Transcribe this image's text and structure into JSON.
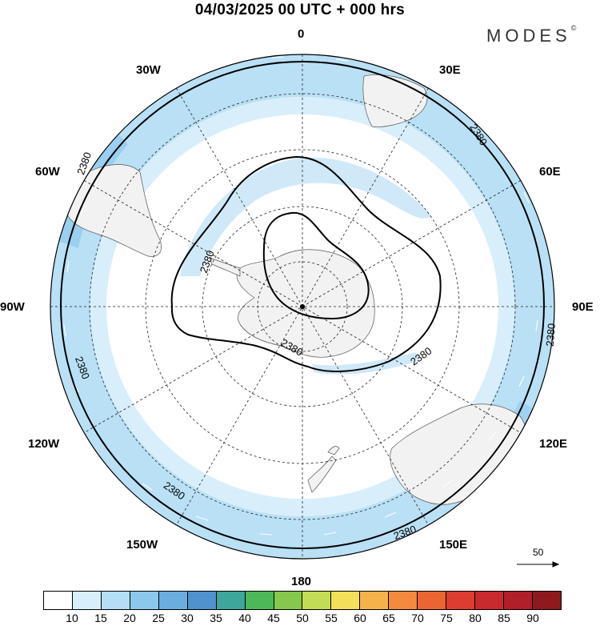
{
  "title": "04/03/2025  00 UTC  + 000 hrs",
  "brand": "MODES",
  "brand_mark": "©",
  "map": {
    "projection": "polar-stereographic-south",
    "lon_labels": [
      {
        "id": "0",
        "text": "0"
      },
      {
        "id": "30E",
        "text": "30E"
      },
      {
        "id": "60E",
        "text": "60E"
      },
      {
        "id": "90E",
        "text": "90E"
      },
      {
        "id": "120E",
        "text": "120E"
      },
      {
        "id": "150E",
        "text": "150E"
      },
      {
        "id": "180",
        "text": "180"
      },
      {
        "id": "150W",
        "text": "150W"
      },
      {
        "id": "120W",
        "text": "120W"
      },
      {
        "id": "90W",
        "text": "90W"
      },
      {
        "id": "60W",
        "text": "60W"
      },
      {
        "id": "30W",
        "text": "30W"
      }
    ],
    "contour_label": "2380",
    "vector_reference": "50"
  },
  "colorbar": {
    "colors": [
      "#ffffff",
      "#d8effb",
      "#b4def5",
      "#8cc8ec",
      "#6aaee0",
      "#4f92cc",
      "#3ea69a",
      "#4db857",
      "#86c84e",
      "#c3dc55",
      "#f4df5a",
      "#f6b24a",
      "#f38a3d",
      "#eb6532",
      "#dc3d30",
      "#c82a2d",
      "#b11f2a",
      "#8e1a1e"
    ],
    "labels": [
      "10",
      "15",
      "20",
      "25",
      "30",
      "35",
      "40",
      "45",
      "50",
      "55",
      "60",
      "65",
      "70",
      "75",
      "80",
      "85",
      "90"
    ]
  }
}
